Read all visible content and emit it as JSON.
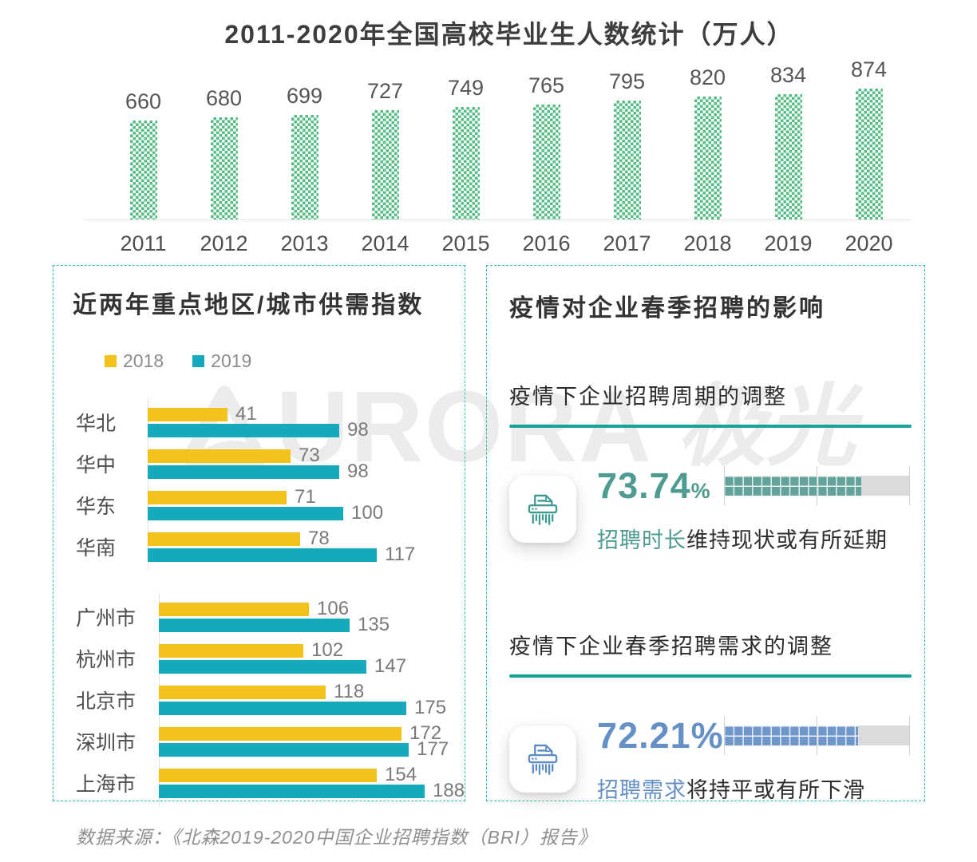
{
  "page": {
    "footer": "数据来源：《北森2019-2020中国企业招聘指数（BRI）报告》",
    "watermark_text": "URORA",
    "watermark_text_cn": "极光"
  },
  "top_chart": {
    "title": "2011-2020年全国高校毕业生人数统计（万人）"
  },
  "left_panel": {
    "title": "近两年重点地区/城市供需指数",
    "legend": [
      {
        "label": "2018",
        "color": "#F4C31B"
      },
      {
        "label": "2019",
        "color": "#15A9BE"
      }
    ]
  },
  "right_panel": {
    "title": "疫情对企业春季招聘的影响",
    "sections": [
      {
        "subtitle": "疫情下企业招聘周期的调整",
        "percent_num": "73.74",
        "percent_sym": "%",
        "percent_sym_small": true,
        "value": 73.74,
        "highlight": "招聘时长",
        "rest": "维持现状或有所延期",
        "accent": "#4E9C91",
        "fill": "#63A39B",
        "underline": "#17A398",
        "icon": "shredder-icon",
        "icon_color": "#3E9A90"
      },
      {
        "subtitle": "疫情下企业春季招聘需求的调整",
        "percent_num": "72.21",
        "percent_sym": "%",
        "percent_sym_small": false,
        "value": 72.21,
        "highlight": "招聘需求",
        "rest": "将持平或有所下滑",
        "accent": "#6590C5",
        "fill": "#7097C9",
        "underline": "#17A398",
        "icon": "shredder-icon",
        "icon_color": "#5B8AC4"
      }
    ]
  },
  "chart_data": [
    {
      "type": "bar",
      "title": "2011-2020年全国高校毕业生人数统计（万人）",
      "categories": [
        "2011",
        "2012",
        "2013",
        "2014",
        "2015",
        "2016",
        "2017",
        "2018",
        "2019",
        "2020"
      ],
      "values": [
        660,
        680,
        699,
        727,
        749,
        765,
        795,
        820,
        834,
        874
      ],
      "bar_color": "#55BE85",
      "bar_pattern": "checker",
      "value_labels_shown": true,
      "ylim": [
        0,
        874
      ],
      "grid": false,
      "legend_position": "none"
    },
    {
      "type": "bar",
      "orientation": "horizontal",
      "title": "近两年重点地区/城市供需指数",
      "legend_position": "top",
      "grid": false,
      "groups": [
        {
          "name": "regions",
          "categories": [
            "华北",
            "华中",
            "华东",
            "华南"
          ],
          "series": [
            {
              "name": "2018",
              "color": "#F4C31B",
              "values": [
                41,
                73,
                71,
                78
              ]
            },
            {
              "name": "2019",
              "color": "#15A9BE",
              "values": [
                98,
                98,
                100,
                117
              ]
            }
          ]
        },
        {
          "name": "cities",
          "categories": [
            "广州市",
            "杭州市",
            "北京市",
            "深圳市",
            "上海市"
          ],
          "series": [
            {
              "name": "2018",
              "color": "#F4C31B",
              "values": [
                106,
                102,
                118,
                172,
                154
              ]
            },
            {
              "name": "2019",
              "color": "#15A9BE",
              "values": [
                135,
                147,
                175,
                177,
                188
              ]
            }
          ]
        }
      ]
    },
    {
      "type": "bar",
      "orientation": "horizontal",
      "title": "疫情对企业春季招聘的影响",
      "xlim": [
        0,
        100
      ],
      "items": [
        {
          "label": "疫情下企业招聘周期的调整",
          "percent": 73.74,
          "caption": "招聘时长维持现状或有所延期"
        },
        {
          "label": "疫情下企业春季招聘需求的调整",
          "percent": 72.21,
          "caption": "招聘需求将持平或有所下滑"
        }
      ]
    }
  ]
}
